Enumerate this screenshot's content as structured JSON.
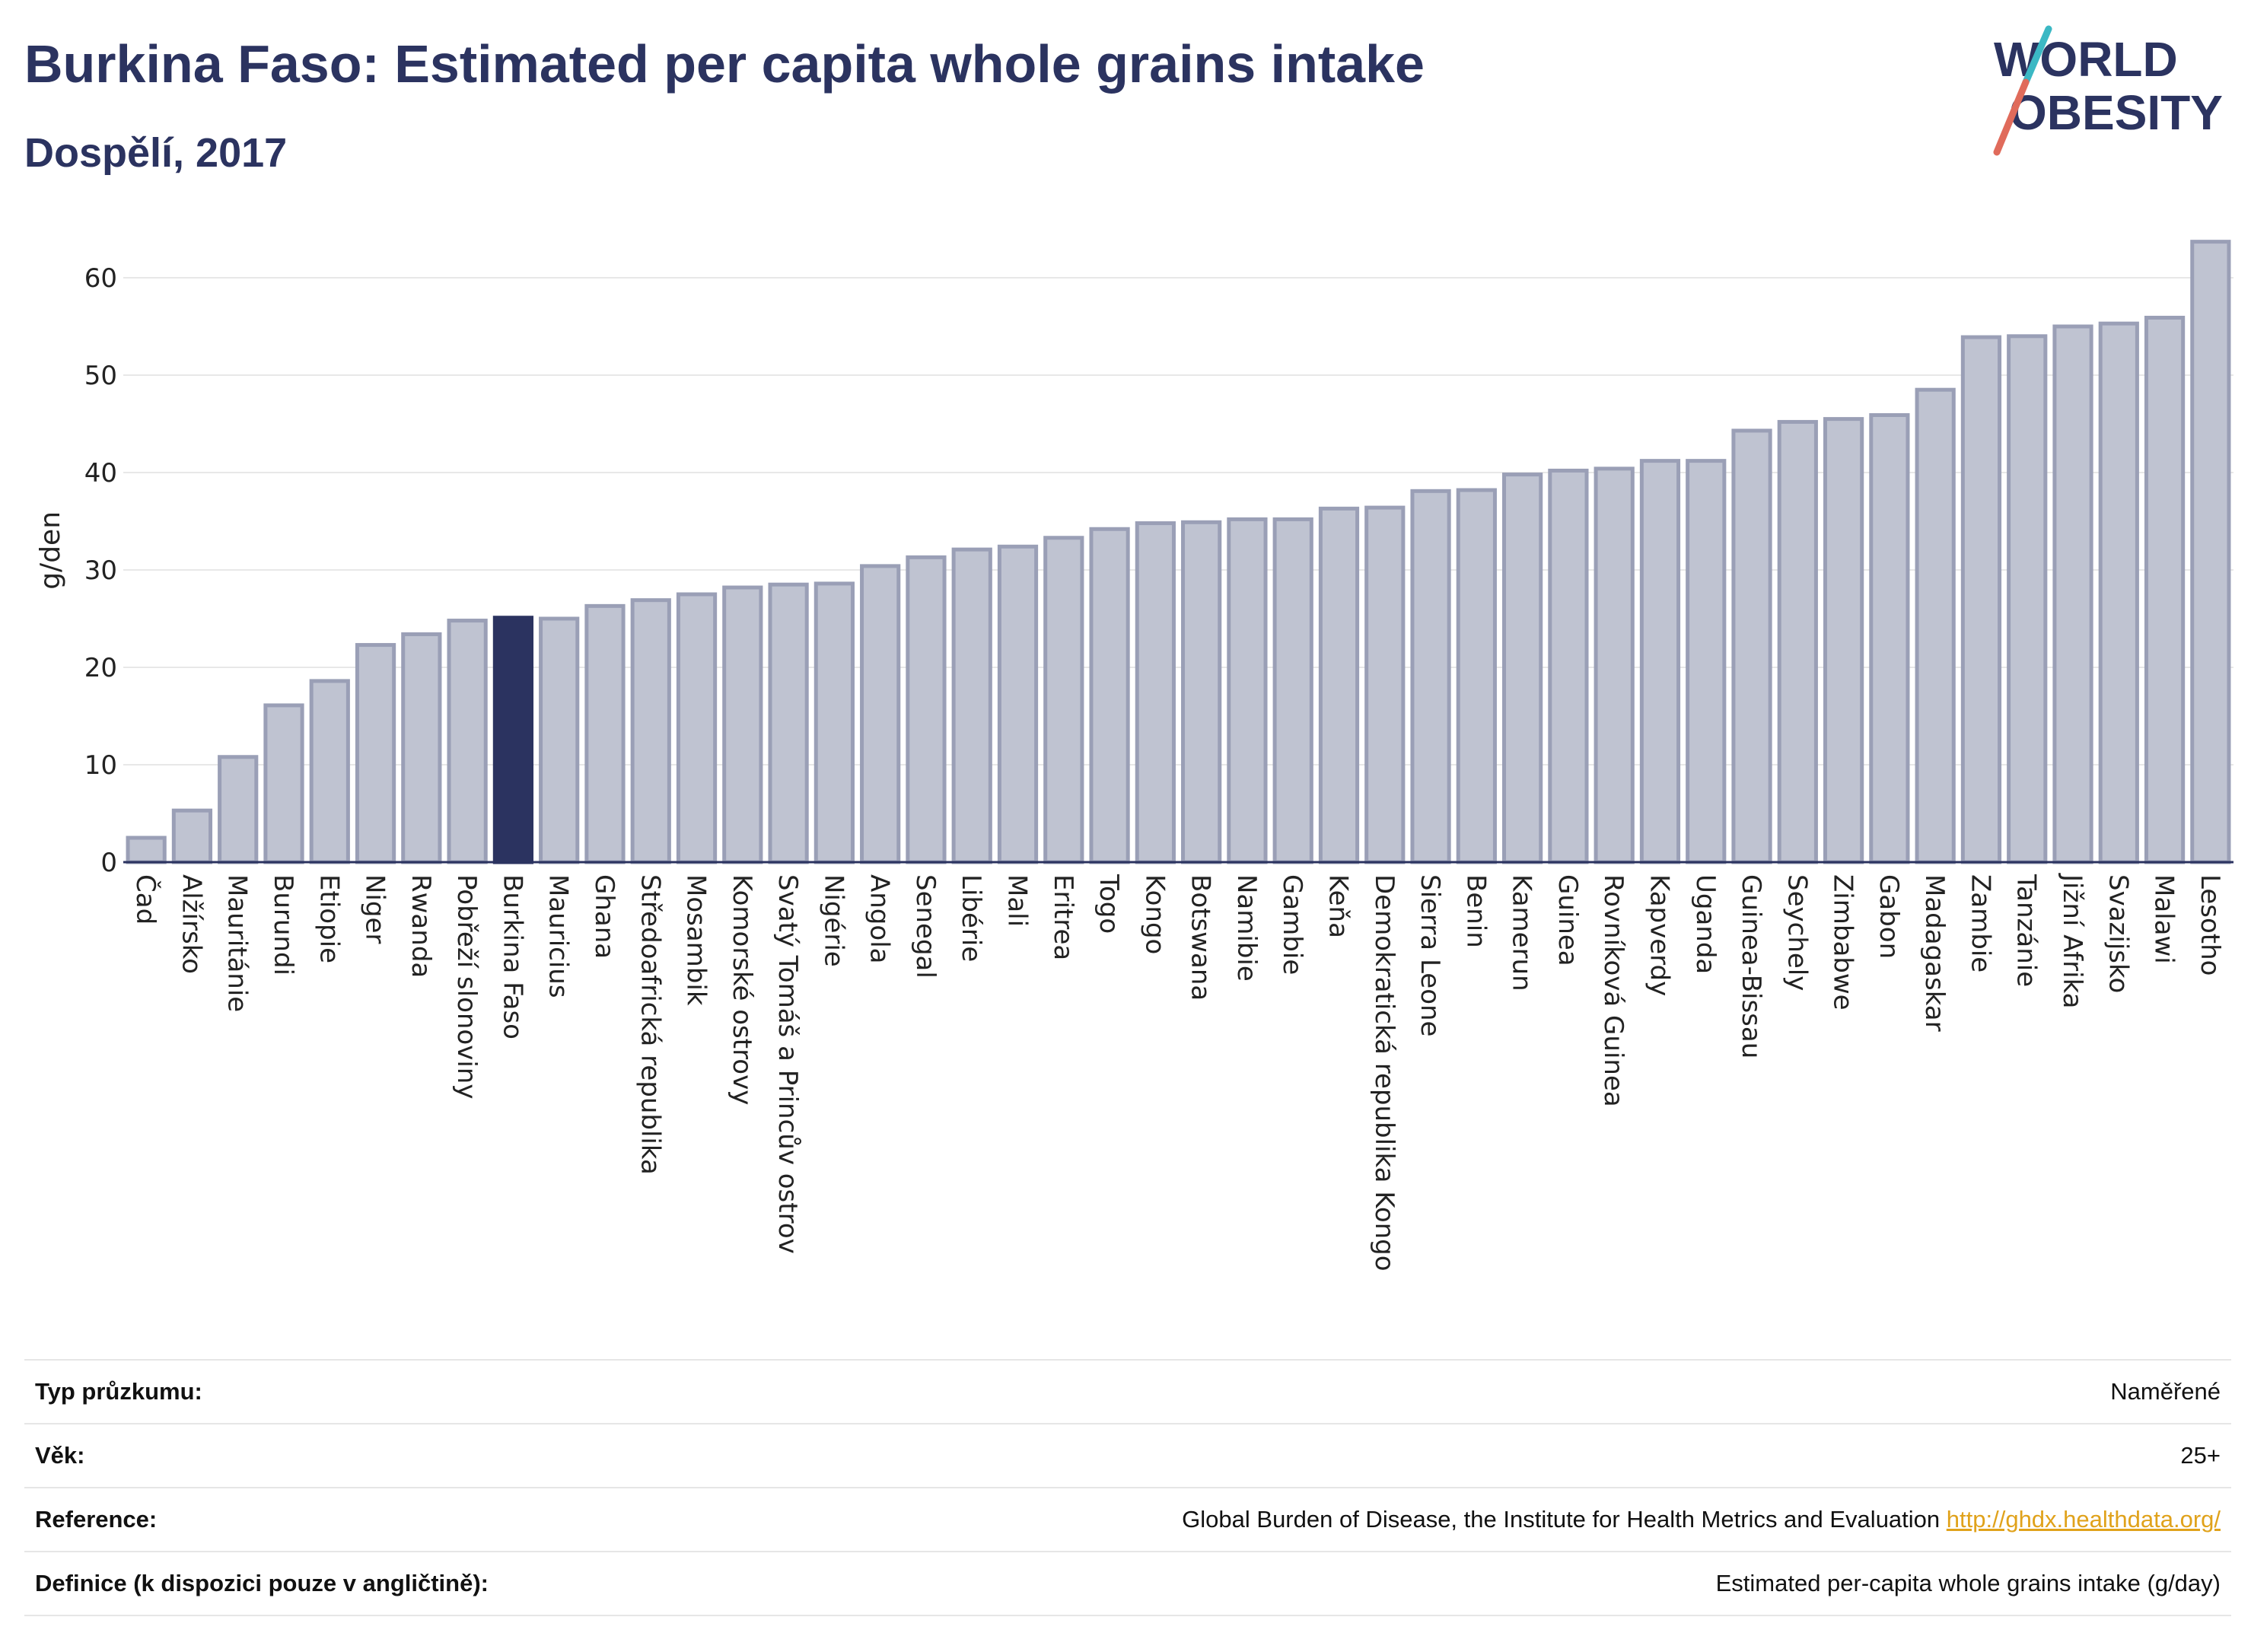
{
  "header": {
    "title": "Burkina Faso: Estimated per capita whole grains intake",
    "subtitle": "Dospělí, 2017"
  },
  "logo": {
    "line1": "WORLD",
    "line2": "OBESITY",
    "colors": {
      "text": "#2b3360",
      "slash_teal": "#3bb8c4",
      "slash_coral": "#e06b5b"
    }
  },
  "chart_data": {
    "type": "bar",
    "title": "Burkina Faso: Estimated per capita whole grains intake",
    "subtitle": "Dospělí, 2017",
    "xlabel": "",
    "ylabel": "g/den",
    "ylim": [
      0,
      65
    ],
    "yticks": [
      0,
      10,
      20,
      30,
      40,
      50,
      60
    ],
    "grid": true,
    "highlight": "Burkina Faso",
    "colors": {
      "bar": "#bfc3d1",
      "bar_edge": "#9a9fb6",
      "highlight": "#2b3360",
      "grid": "#e8e8e8"
    },
    "categories": [
      "Čad",
      "Alžírsko",
      "Mauritánie",
      "Burundi",
      "Etiopie",
      "Niger",
      "Rwanda",
      "Pobřeží slonoviny",
      "Burkina Faso",
      "Mauricius",
      "Ghana",
      "Středoafrická republika",
      "Mosambik",
      "Komorské ostrovy",
      "Svatý Tomáš a Princův ostrov",
      "Nigérie",
      "Angola",
      "Senegal",
      "Libérie",
      "Mali",
      "Eritrea",
      "Togo",
      "Kongo",
      "Botswana",
      "Namibie",
      "Gambie",
      "Keňa",
      "Demokratická republika Kongo",
      "Sierra Leone",
      "Benin",
      "Kamerun",
      "Guinea",
      "Rovníková Guinea",
      "Kapverdy",
      "Uganda",
      "Guinea-Bissau",
      "Seychely",
      "Zimbabwe",
      "Gabon",
      "Madagaskar",
      "Zambie",
      "Tanzánie",
      "Jižní Afrika",
      "Svazijsko",
      "Malawi",
      "Lesotho"
    ],
    "values": [
      2.5,
      5.3,
      10.8,
      16.1,
      18.6,
      22.3,
      23.4,
      24.8,
      25.1,
      25.0,
      26.3,
      26.9,
      27.5,
      28.2,
      28.5,
      28.6,
      30.4,
      31.3,
      32.1,
      32.4,
      33.3,
      34.2,
      34.8,
      34.9,
      35.2,
      35.2,
      36.3,
      36.4,
      38.1,
      38.2,
      39.8,
      40.2,
      40.4,
      41.2,
      41.2,
      44.3,
      45.2,
      45.5,
      45.9,
      48.5,
      53.9,
      54.0,
      55.0,
      55.3,
      55.9,
      63.7
    ]
  },
  "info": {
    "rows": [
      {
        "label": "Typ průzkumu:",
        "value": "Naměřené"
      },
      {
        "label": "Věk:",
        "value": "25+"
      },
      {
        "label": "Reference:",
        "value": "Global Burden of Disease, the Institute for Health Metrics and Evaluation",
        "link": "http://ghdx.healthdata.org/"
      },
      {
        "label": "Definice (k dispozici pouze v angličtině):",
        "value": "Estimated per-capita whole grains intake (g/day)"
      }
    ]
  }
}
